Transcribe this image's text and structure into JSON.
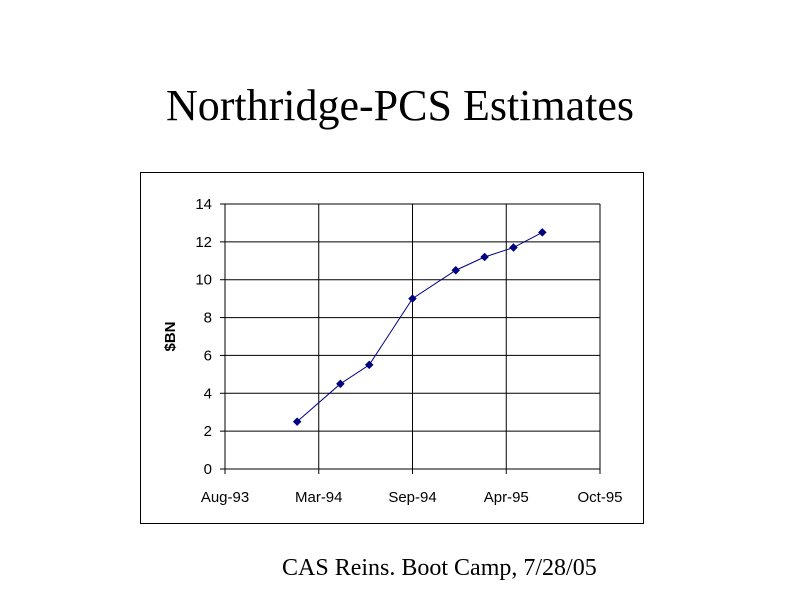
{
  "slide": {
    "title": "Northridge-PCS Estimates",
    "footer": "CAS Reins. Boot Camp, 7/28/05"
  },
  "chart_data": {
    "type": "line",
    "title": "",
    "xlabel": "",
    "ylabel": "$BN",
    "x_tick_labels": [
      "Aug-93",
      "Mar-94",
      "Sep-94",
      "Apr-95",
      "Oct-95"
    ],
    "xlim": [
      "1993-08",
      "1995-10"
    ],
    "ylim": [
      0,
      14
    ],
    "y_ticks": [
      0,
      2,
      4,
      6,
      8,
      10,
      12,
      14
    ],
    "grid": true,
    "legend": "none",
    "series": [
      {
        "color": "#000080",
        "points": [
          {
            "x": "1994-01",
            "y": 2.5
          },
          {
            "x": "1994-04",
            "y": 4.5
          },
          {
            "x": "1994-06",
            "y": 5.5
          },
          {
            "x": "1994-09",
            "y": 9.0
          },
          {
            "x": "1994-12",
            "y": 10.5
          },
          {
            "x": "1995-02",
            "y": 11.2
          },
          {
            "x": "1995-04",
            "y": 11.7
          },
          {
            "x": "1995-06",
            "y": 12.5
          }
        ]
      }
    ]
  }
}
